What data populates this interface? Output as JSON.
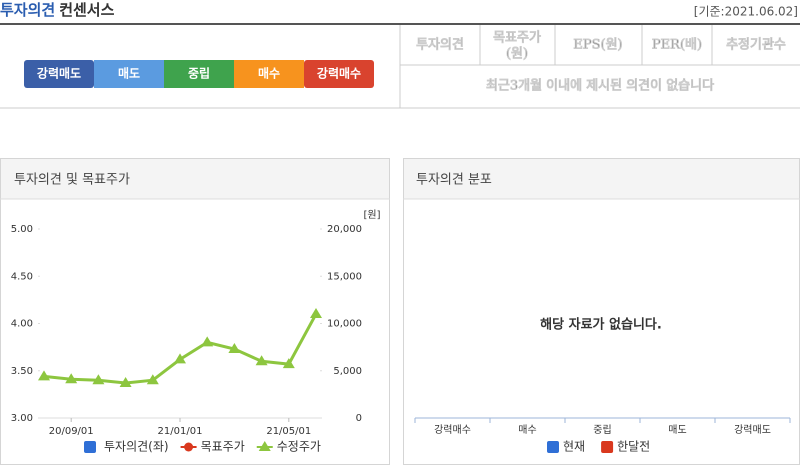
{
  "header": {
    "title_accent": "투자의견",
    "title": "컨센서스",
    "date": "[기준:2021.06.02]"
  },
  "scale": [
    "강력매도",
    "매도",
    "중립",
    "매수",
    "강력매수"
  ],
  "table": {
    "columns": [
      [
        "투자의견"
      ],
      [
        "목표주가",
        "(원)"
      ],
      [
        "EPS(원)"
      ],
      [
        "PER(배)"
      ],
      [
        "추정기관수"
      ]
    ],
    "message": "최근3개월 이내에 제시된 의견이 없습니다"
  },
  "chart_data": [
    {
      "type": "line",
      "title": "투자의견 및 목표주가",
      "categories": [
        null,
        "20/09/01",
        null,
        null,
        null,
        "21/01/01",
        null,
        null,
        null,
        "21/05/01",
        null
      ],
      "ylim": [
        3,
        5
      ],
      "yticks": [
        {
          "value": 3,
          "label": "3.00"
        },
        {
          "value": 3.5,
          "label": "3.50"
        },
        {
          "value": 4,
          "label": "4.00"
        },
        {
          "value": 4.5,
          "label": "4.50"
        },
        {
          "value": 5,
          "label": "5.00"
        }
      ],
      "y2lim": [
        0,
        20000
      ],
      "y2ticks": [
        0,
        {
          "value": 5000,
          "label": "5,000"
        },
        {
          "value": 10000,
          "label": "10,000"
        },
        {
          "value": 15000,
          "label": "15,000"
        },
        {
          "value": 20000,
          "label": "20,000"
        }
      ],
      "y2_unit": "[원]",
      "series": [
        {
          "name": "투자의견(좌)",
          "color": "#2f6fd6",
          "marker": "square",
          "values": [
            null,
            null,
            null,
            null,
            null,
            null,
            null,
            null,
            null,
            null,
            null
          ]
        },
        {
          "name": "목표주가",
          "color": "#d9381e",
          "marker": "circle",
          "axis": "y2",
          "values": [
            null,
            null,
            null,
            null,
            null,
            null,
            null,
            null,
            null,
            null,
            null
          ]
        },
        {
          "name": "수정주가",
          "color": "#8dc63f",
          "marker": "triangle",
          "axis": "y2",
          "values": [
            4400,
            4100,
            4000,
            3700,
            4000,
            6200,
            8000,
            7300,
            6000,
            5700,
            11000
          ]
        }
      ]
    },
    {
      "type": "bar",
      "title": "투자의견 분포",
      "message": "해당 자료가 없습니다.",
      "categories": [
        "강력매수",
        "매수",
        "중립",
        "매도",
        "강력매도"
      ],
      "series": [
        {
          "name": "현재",
          "color": "#2f6fd6",
          "values": [
            null,
            null,
            null,
            null,
            null
          ]
        },
        {
          "name": "한달전",
          "color": "#d9381e",
          "values": [
            null,
            null,
            null,
            null,
            null
          ]
        }
      ]
    }
  ]
}
